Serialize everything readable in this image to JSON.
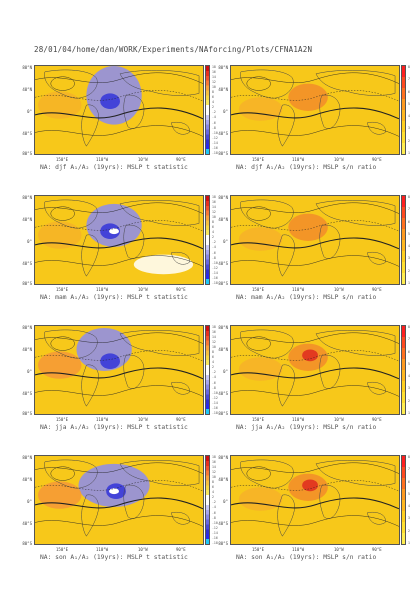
{
  "header": {
    "path": "28/01/04/home/dan/WORK/Experiments/NAforcing/Plots/CFNA1A2N"
  },
  "lat_labels": [
    "80°N",
    "40°N",
    "0°",
    "40°S",
    "80°S"
  ],
  "lon_labels": [
    "150°E",
    "110°W",
    "10°W",
    "90°E"
  ],
  "tstat_ticks": [
    "18",
    "16",
    "14",
    "12",
    "10",
    "8",
    "6",
    "4",
    "2",
    "-2",
    "-4",
    "-6",
    "-8",
    "-10",
    "-12",
    "-14",
    "-16",
    "-18"
  ],
  "snr_ticks": [
    "8",
    "7",
    "6",
    "5",
    "4",
    "3",
    "2",
    "1"
  ],
  "panels": [
    {
      "caption": "NA: djf A₁/A₂ (19yrs): MSLP t statistic"
    },
    {
      "caption": "NA: djf A₁/A₂ (19yrs): MSLP s/n ratio"
    },
    {
      "caption": "NA: mam A₁/A₂ (19yrs): MSLP t statistic"
    },
    {
      "caption": "NA: mam A₁/A₂ (19yrs): MSLP s/n ratio"
    },
    {
      "caption": "NA: jja A₁/A₂ (19yrs): MSLP t statistic"
    },
    {
      "caption": "NA: jja A₁/A₂ (19yrs): MSLP s/n ratio"
    },
    {
      "caption": "NA: son A₁/A₂ (19yrs): MSLP t statistic"
    },
    {
      "caption": "NA: son A₁/A₂ (19yrs): MSLP s/n ratio"
    }
  ],
  "colors": {
    "tstat_scale": [
      "#d01010",
      "#e83020",
      "#f05030",
      "#f87838",
      "#f8a040",
      "#f8c040",
      "#f8d848",
      "#f8e860",
      "#ffffff",
      "#ffffff",
      "#c8c8f8",
      "#a8a8f0",
      "#8888e8",
      "#6868e0",
      "#4848d8",
      "#3030d0",
      "#2828f0",
      "#20c8f8"
    ],
    "snr_scale": [
      "#ff2020",
      "#ff4a20",
      "#ff7020",
      "#ff9a20",
      "#ffb820",
      "#ffd020",
      "#ffe030",
      "#ffee50"
    ]
  }
}
